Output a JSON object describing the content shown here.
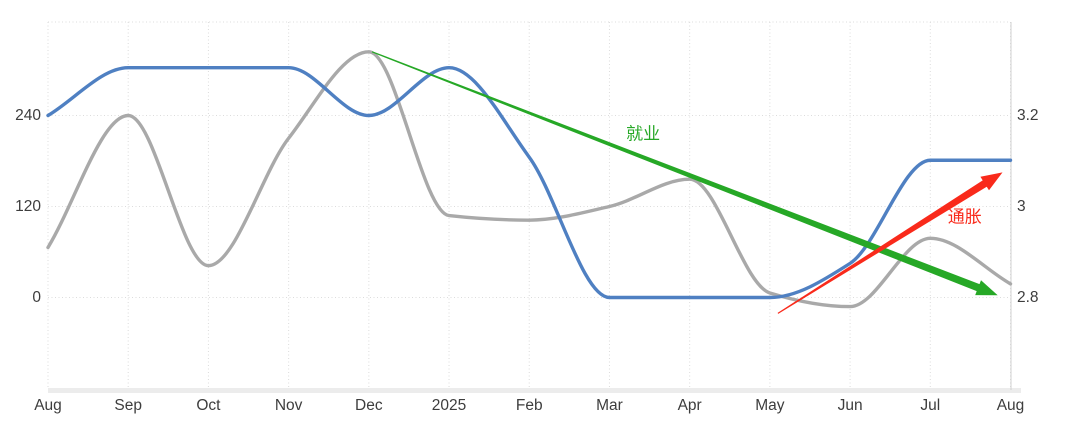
{
  "chart": {
    "x_labels": [
      "Aug",
      "Sep",
      "Oct",
      "Nov",
      "Dec",
      "2025",
      "Feb",
      "Mar",
      "Apr",
      "May",
      "Jun",
      "Jul",
      "Aug"
    ],
    "left_axis_labels": [
      "240",
      "120",
      "0"
    ],
    "left_axis_values": [
      240,
      120,
      0
    ],
    "right_axis_labels": [
      "3.2",
      "3",
      "2.8"
    ],
    "right_axis_values": [
      3.2,
      3.0,
      2.8
    ],
    "colors": {
      "background": "#ffffff",
      "axis_text": "#3d3d3d",
      "gridline": "#dcdcdc",
      "plot_border": "#d0d0d0",
      "bottom_strip": "#ececec",
      "blue_series": "#4f80c2",
      "gray_series": "#a9a9a9",
      "green_annotation": "#26a826",
      "red_annotation": "#f92a1b"
    }
  },
  "chart_data": {
    "type": "line",
    "smoothing": "spline",
    "grid": true,
    "legend": false,
    "categories": [
      "Aug",
      "Sep",
      "Oct",
      "Nov",
      "Dec",
      "2025",
      "Feb",
      "Mar",
      "Apr",
      "May",
      "Jun",
      "Jul",
      "Aug"
    ],
    "left_axis_range_visible": [
      0,
      240
    ],
    "right_axis_range_visible": [
      2.8,
      3.2
    ],
    "series": [
      {
        "name": "就业",
        "axis": "left",
        "color": "#4f80c2",
        "values": [
          240,
          303,
          303,
          303,
          240,
          303,
          185,
          0,
          0,
          0,
          45,
          181,
          181
        ]
      },
      {
        "name": "通胀",
        "axis": "right",
        "color": "#a9a9a9",
        "values": [
          2.91,
          3.2,
          2.87,
          3.15,
          3.34,
          2.98,
          2.97,
          3.0,
          3.06,
          2.81,
          2.78,
          2.93,
          2.83
        ]
      }
    ],
    "annotations": [
      {
        "label": "就业",
        "color": "#26a826",
        "type": "taper-arrow",
        "from": {
          "month_x": 4.04,
          "value_right": 3.34
        },
        "to": {
          "month_x": 11.84,
          "value_right": 2.805
        },
        "label_at": {
          "month_x": 7.42,
          "value_right": 3.163
        }
      },
      {
        "label": "通胀",
        "color": "#f92a1b",
        "type": "taper-arrow",
        "from": {
          "month_x": 9.1,
          "value_right": 2.765
        },
        "to": {
          "month_x": 11.9,
          "value_right": 3.075
        },
        "label_at": {
          "month_x": 11.43,
          "value_right": 2.982
        }
      }
    ]
  }
}
